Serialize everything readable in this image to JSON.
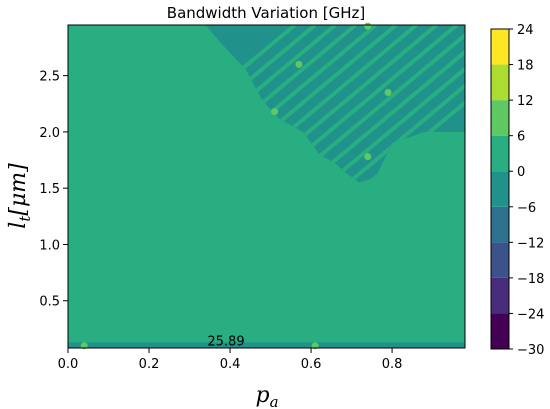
{
  "chart_data": {
    "type": "heatmap",
    "subtype": "filled-contour",
    "title": "Bandwidth Variation [GHz]",
    "xlabel": "p_a",
    "ylabel": "l_t [μm]",
    "xlim": [
      0.0,
      0.98
    ],
    "ylim": [
      0.08,
      2.95
    ],
    "x_ticks": [
      0.0,
      0.2,
      0.4,
      0.6,
      0.8
    ],
    "x_tick_labels": [
      "0.0",
      "0.2",
      "0.4",
      "0.6",
      "0.8"
    ],
    "y_ticks": [
      0.5,
      1.0,
      1.5,
      2.0,
      2.5
    ],
    "y_tick_labels": [
      "0.5",
      "1.0",
      "1.5",
      "2.0",
      "2.5"
    ],
    "grid": false,
    "colormap": "viridis",
    "colorbar": {
      "levels": [
        -30,
        -24,
        -18,
        -12,
        -6,
        0,
        6,
        12,
        18,
        24
      ],
      "labels": [
        "−30",
        "−24",
        "−18",
        "−12",
        "−6",
        "0",
        "6",
        "12",
        "18",
        "24"
      ],
      "colors": [
        "#440154",
        "#472d7b",
        "#3b528b",
        "#2c728e",
        "#21918c",
        "#28ae80",
        "#5ec962",
        "#addc30",
        "#fde725"
      ]
    },
    "background_level": [
      0,
      6
    ],
    "band_level": [
      -6,
      0
    ],
    "background_color": "#28ae80",
    "band_color": "#21918c",
    "annotation": {
      "text": "25.89",
      "x": 0.39,
      "y": 0.1
    }
  }
}
